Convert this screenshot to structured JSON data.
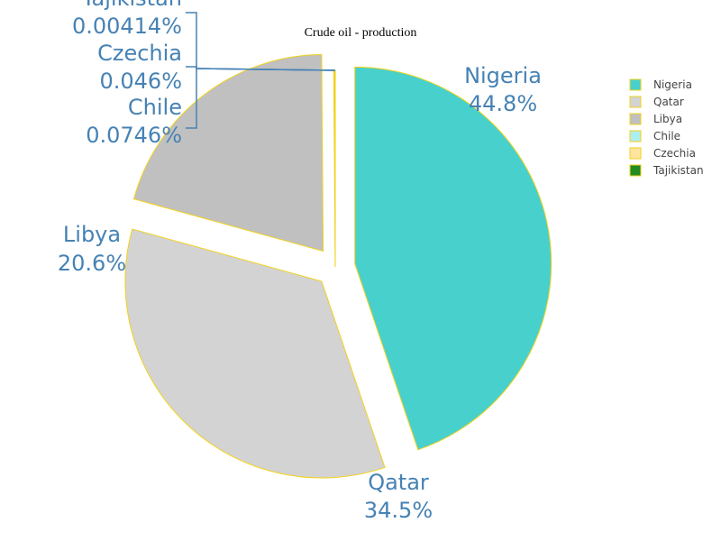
{
  "chart_data": {
    "type": "pie",
    "title": "Crude oil - production",
    "slices": [
      {
        "label": "Nigeria",
        "percent_label": "44.8%",
        "value": 44.8,
        "color": "#48d1cc",
        "pulled": true
      },
      {
        "label": "Qatar",
        "percent_label": "34.5%",
        "value": 34.5,
        "color": "#d3d3d3",
        "pulled": true
      },
      {
        "label": "Libya",
        "percent_label": "20.6%",
        "value": 20.6,
        "color": "#c0c0c0",
        "pulled": true
      },
      {
        "label": "Chile",
        "percent_label": "0.0746%",
        "value": 0.0746,
        "color": "#afeeee",
        "pulled": false
      },
      {
        "label": "Czechia",
        "percent_label": "0.046%",
        "value": 0.046,
        "color": "#ffe4a0",
        "pulled": false
      },
      {
        "label": "Tajikistan",
        "percent_label": "0.00414%",
        "value": 0.00414,
        "color": "#228b22",
        "pulled": false
      }
    ],
    "legend_position": "top-right",
    "slice_border_color": "#f2d21b",
    "label_color": "#4682b4"
  }
}
